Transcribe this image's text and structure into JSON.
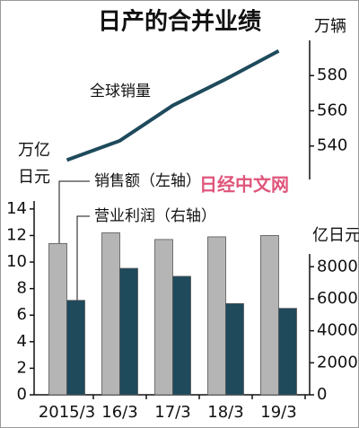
{
  "chart_data": {
    "type": "combo",
    "title": "日产的合并业绩",
    "categories": [
      "2015/3",
      "16/3",
      "17/3",
      "18/3",
      "19/3"
    ],
    "series": [
      {
        "name": "销售额（左轴）",
        "type": "bar",
        "color": "#b5b5b5",
        "values": [
          11.4,
          12.2,
          11.7,
          11.9,
          12.0
        ]
      },
      {
        "name": "营业利润（右轴）",
        "type": "bar",
        "axis": "y2",
        "color": "#1e4a5c",
        "values": [
          5900,
          7900,
          7400,
          5700,
          5400
        ]
      },
      {
        "name": "全球销量",
        "type": "line",
        "axis": "y3",
        "color": "#1e4a5c",
        "values": [
          532,
          543,
          563,
          578,
          594
        ]
      }
    ],
    "ylabel": [
      "万亿",
      "日元"
    ],
    "y2label": "亿日元",
    "y3label": "万辆",
    "ylim": [
      0,
      14.6
    ],
    "yticks": [
      0,
      2,
      4,
      6,
      8,
      10,
      12,
      14
    ],
    "y2lim": [
      0,
      8800
    ],
    "y2ticks": [
      0,
      2000,
      4000,
      6000,
      8000
    ],
    "y3lim": [
      521,
      600
    ],
    "y3ticks": [
      540,
      560,
      580
    ],
    "watermark": "日经中文网"
  }
}
